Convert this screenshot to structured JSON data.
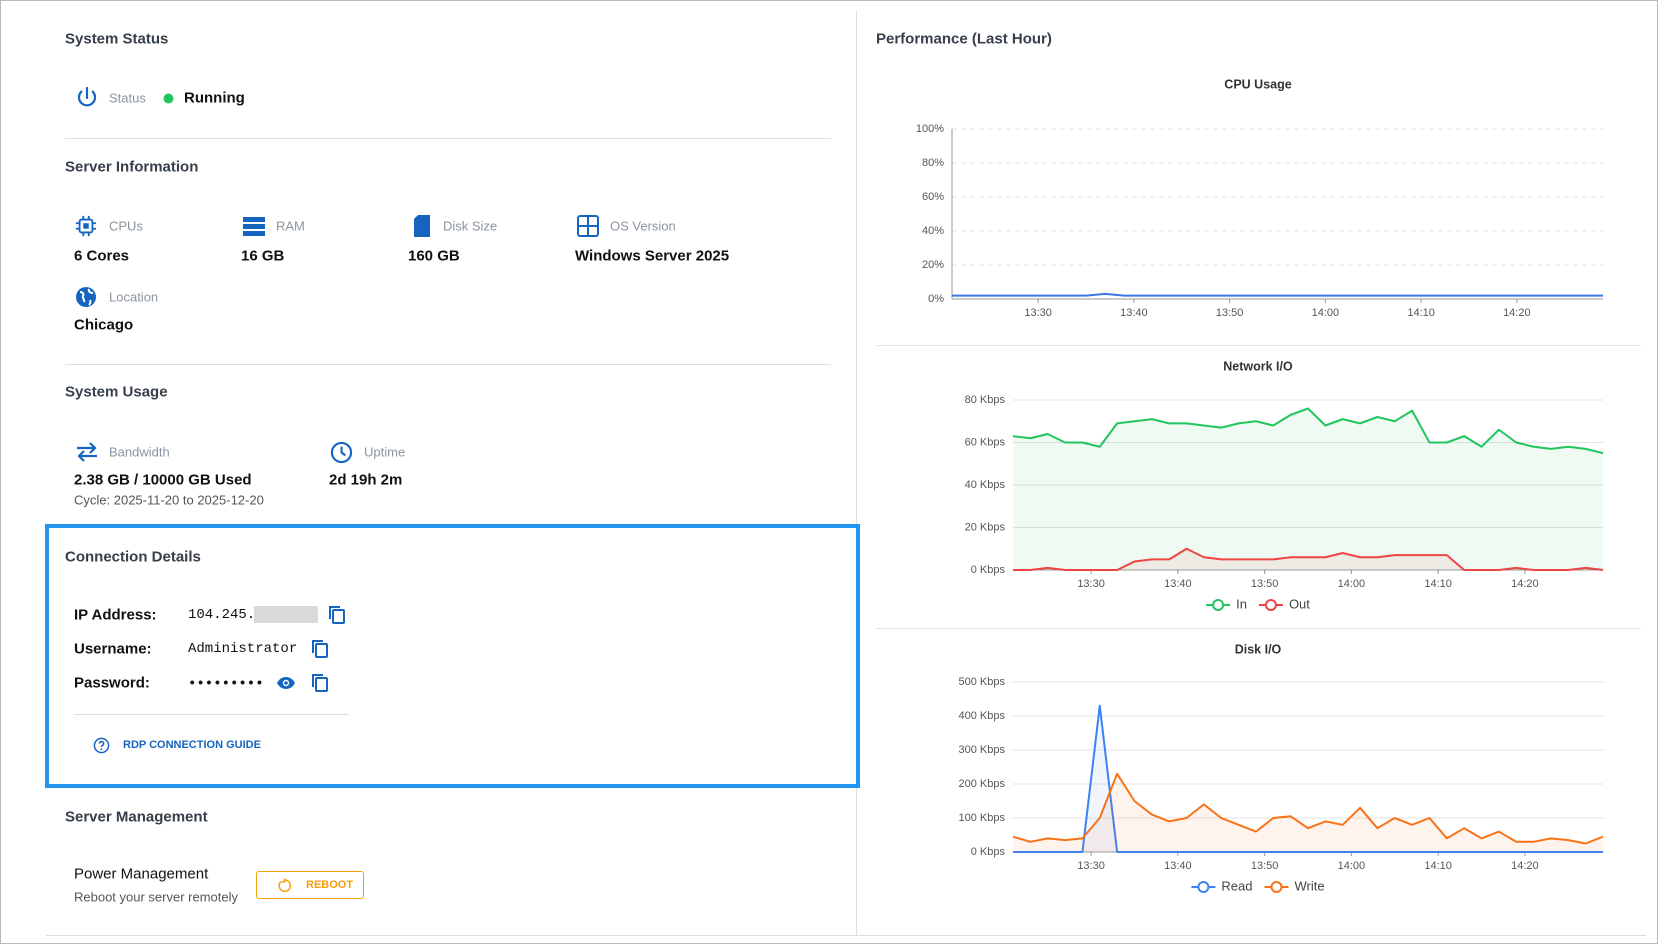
{
  "system_status": {
    "title": "System Status",
    "status_label": "Status",
    "status_value": "Running"
  },
  "server_information": {
    "title": "Server Information",
    "items": [
      {
        "label": "CPUs",
        "value": "6 Cores"
      },
      {
        "label": "RAM",
        "value": "16 GB"
      },
      {
        "label": "Disk Size",
        "value": "160 GB"
      },
      {
        "label": "OS Version",
        "value": "Windows Server 2025"
      },
      {
        "label": "Location",
        "value": "Chicago"
      }
    ]
  },
  "system_usage": {
    "title": "System Usage",
    "bandwidth": {
      "label": "Bandwidth",
      "value": "2.38 GB / 10000 GB Used",
      "cycle": "Cycle: 2025-11-20 to 2025-12-20"
    },
    "uptime": {
      "label": "Uptime",
      "value": "2d 19h 2m"
    }
  },
  "connection_details": {
    "title": "Connection Details",
    "ip_label": "IP Address:",
    "ip_value": "104.245.",
    "username_label": "Username:",
    "username_value": "Administrator",
    "password_label": "Password:",
    "password_value": "•••••••••",
    "guide_link": "RDP CONNECTION GUIDE"
  },
  "server_management": {
    "title": "Server Management",
    "power_title": "Power Management",
    "power_subtitle": "Reboot your server remotely",
    "reboot_button": "REBOOT"
  },
  "performance": {
    "title": "Performance (Last Hour)"
  },
  "chart_data": [
    {
      "type": "line",
      "title": "CPU Usage",
      "color": "#3b78e7",
      "grid": true,
      "grid_style": "dashed",
      "x": [
        "13:21",
        "13:23",
        "13:25",
        "13:27",
        "13:29",
        "13:31",
        "13:33",
        "13:35",
        "13:37",
        "13:39",
        "13:41",
        "13:43",
        "13:45",
        "13:47",
        "13:49",
        "13:51",
        "13:53",
        "13:55",
        "13:57",
        "13:59",
        "14:01",
        "14:03",
        "14:05",
        "14:07",
        "14:09",
        "14:11",
        "14:13",
        "14:15",
        "14:17",
        "14:19",
        "14:21",
        "14:23",
        "14:25",
        "14:27",
        "14:29"
      ],
      "values": [
        2,
        2,
        2,
        2,
        2,
        2,
        2,
        2,
        3,
        2,
        2,
        2,
        2,
        2,
        2,
        2,
        2,
        2,
        2,
        2,
        2,
        2,
        2,
        2,
        2,
        2,
        2,
        2,
        2,
        2,
        2,
        2,
        2,
        2,
        2
      ],
      "xlim": [
        "13:21",
        "14:29"
      ],
      "xticks": [
        "13:30",
        "13:40",
        "13:50",
        "14:00",
        "14:10",
        "14:20"
      ],
      "ylim": [
        0,
        100
      ],
      "yticks": [
        {
          "value": 0,
          "label": "0%"
        },
        {
          "value": 20,
          "label": "20%"
        },
        {
          "value": 40,
          "label": "40%"
        },
        {
          "value": 60,
          "label": "60%"
        },
        {
          "value": 80,
          "label": "80%"
        },
        {
          "value": 100,
          "label": "100%"
        }
      ]
    },
    {
      "type": "line",
      "title": "Network I/O",
      "area": true,
      "grid": true,
      "grid_style": "solid",
      "legend": "bottom",
      "x": [
        "13:21",
        "13:23",
        "13:25",
        "13:27",
        "13:29",
        "13:31",
        "13:33",
        "13:35",
        "13:37",
        "13:39",
        "13:41",
        "13:43",
        "13:45",
        "13:47",
        "13:49",
        "13:51",
        "13:53",
        "13:55",
        "13:57",
        "13:59",
        "14:01",
        "14:03",
        "14:05",
        "14:07",
        "14:09",
        "14:11",
        "14:13",
        "14:15",
        "14:17",
        "14:19",
        "14:21",
        "14:23",
        "14:25",
        "14:27",
        "14:29"
      ],
      "series": [
        {
          "name": "In",
          "color": "#22c55e",
          "values": [
            63,
            62,
            64,
            60,
            60,
            58,
            69,
            70,
            71,
            69,
            69,
            68,
            67,
            69,
            70,
            68,
            73,
            76,
            68,
            71,
            69,
            72,
            70,
            75,
            60,
            60,
            63,
            58,
            66,
            60,
            58,
            57,
            58,
            57,
            55
          ]
        },
        {
          "name": "Out",
          "color": "#ef4444",
          "values": [
            0,
            0,
            1,
            0,
            0,
            0,
            0,
            4,
            5,
            5,
            10,
            6,
            5,
            5,
            5,
            5,
            6,
            6,
            6,
            8,
            6,
            6,
            7,
            7,
            7,
            7,
            0,
            0,
            0,
            1,
            0,
            0,
            0,
            1,
            0
          ]
        }
      ],
      "xlim": [
        "13:21",
        "14:29"
      ],
      "xticks": [
        "13:30",
        "13:40",
        "13:50",
        "14:00",
        "14:10",
        "14:20"
      ],
      "ylim": [
        0,
        80
      ],
      "yticks": [
        {
          "value": 0,
          "label": "0 Kbps"
        },
        {
          "value": 20,
          "label": "20 Kbps"
        },
        {
          "value": 40,
          "label": "40 Kbps"
        },
        {
          "value": 60,
          "label": "60 Kbps"
        },
        {
          "value": 80,
          "label": "80 Kbps"
        }
      ]
    },
    {
      "type": "line",
      "title": "Disk I/O",
      "area": true,
      "grid": true,
      "grid_style": "solid",
      "legend": "bottom",
      "x": [
        "13:21",
        "13:23",
        "13:25",
        "13:27",
        "13:29",
        "13:31",
        "13:33",
        "13:35",
        "13:37",
        "13:39",
        "13:41",
        "13:43",
        "13:45",
        "13:47",
        "13:49",
        "13:51",
        "13:53",
        "13:55",
        "13:57",
        "13:59",
        "14:01",
        "14:03",
        "14:05",
        "14:07",
        "14:09",
        "14:11",
        "14:13",
        "14:15",
        "14:17",
        "14:19",
        "14:21",
        "14:23",
        "14:25",
        "14:27",
        "14:29"
      ],
      "series": [
        {
          "name": "Read",
          "color": "#3b82f6",
          "values": [
            0,
            0,
            0,
            0,
            0,
            430,
            0,
            0,
            0,
            0,
            0,
            0,
            0,
            0,
            0,
            0,
            0,
            0,
            0,
            0,
            0,
            0,
            0,
            0,
            0,
            0,
            0,
            0,
            0,
            0,
            0,
            0,
            0,
            0,
            0
          ]
        },
        {
          "name": "Write",
          "color": "#f97316",
          "values": [
            45,
            30,
            40,
            35,
            40,
            100,
            230,
            150,
            110,
            90,
            100,
            140,
            100,
            80,
            60,
            100,
            105,
            70,
            90,
            80,
            130,
            70,
            100,
            80,
            100,
            40,
            70,
            40,
            60,
            30,
            30,
            40,
            35,
            25,
            45
          ]
        }
      ],
      "xlim": [
        "13:21",
        "14:29"
      ],
      "xticks": [
        "13:30",
        "13:40",
        "13:50",
        "14:00",
        "14:10",
        "14:20"
      ],
      "ylim": [
        0,
        500
      ],
      "yticks": [
        {
          "value": 0,
          "label": "0 Kbps"
        },
        {
          "value": 100,
          "label": "100 Kbps"
        },
        {
          "value": 200,
          "label": "200 Kbps"
        },
        {
          "value": 300,
          "label": "300 Kbps"
        },
        {
          "value": 400,
          "label": "400 Kbps"
        },
        {
          "value": 500,
          "label": "500 Kbps"
        }
      ]
    }
  ]
}
